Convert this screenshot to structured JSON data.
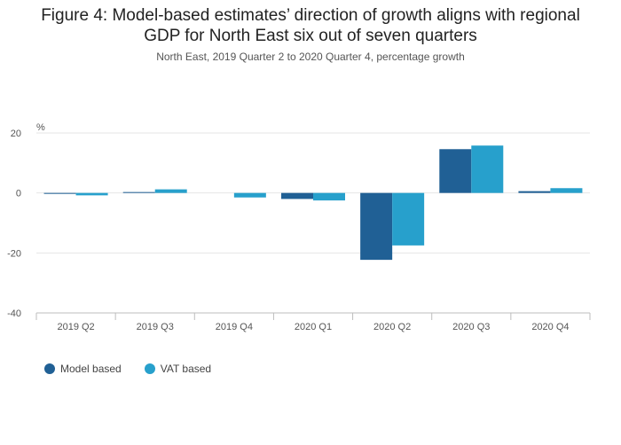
{
  "title_lines": [
    "Figure 4: Model-based estimates’ direction of growth aligns with regional",
    "GDP for North East six out of seven quarters"
  ],
  "subtitle": "North East, 2019 Quarter 2 to 2020 Quarter 4, percentage growth",
  "colors": {
    "model": "#206095",
    "vat": "#27a0cc",
    "grid": "#e6e6e6",
    "axis": "#bdbdbd"
  },
  "chart_data": {
    "type": "bar",
    "categories": [
      "2019 Q2",
      "2019 Q3",
      "2019 Q4",
      "2020 Q1",
      "2020 Q2",
      "2020 Q3",
      "2020 Q4"
    ],
    "series": [
      {
        "name": "Model based",
        "values": [
          -0.3,
          0.3,
          0.0,
          -2.0,
          -22.3,
          14.6,
          0.6
        ]
      },
      {
        "name": "VAT based",
        "values": [
          -0.8,
          1.2,
          -1.5,
          -2.5,
          -17.5,
          15.8,
          1.6
        ]
      }
    ],
    "ylabel": "%",
    "ylim": [
      -40,
      20
    ],
    "yticks": [
      20,
      0,
      -20,
      -40
    ],
    "grid": true,
    "legend_position": "bottom-left"
  }
}
